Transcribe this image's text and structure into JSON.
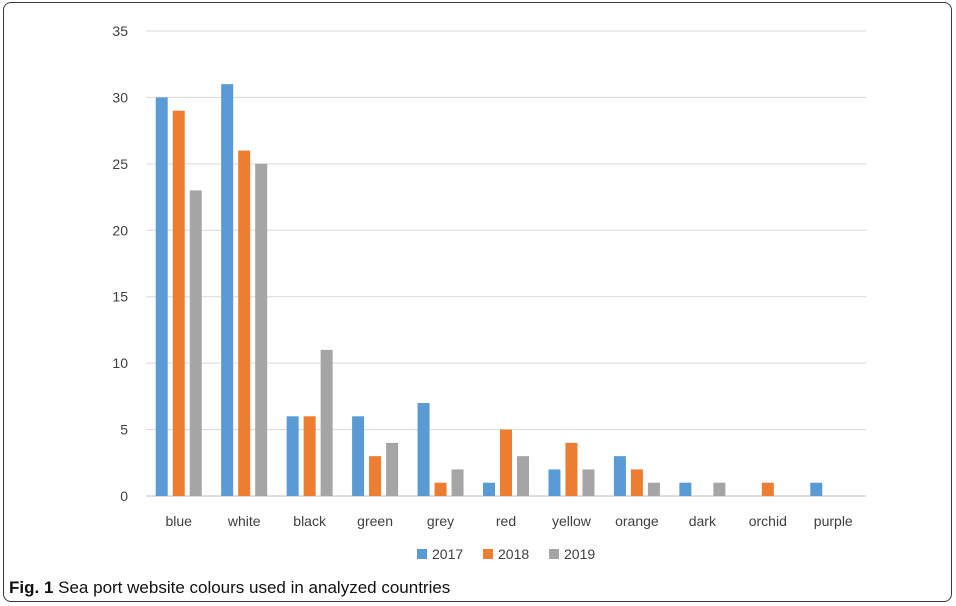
{
  "chart_data": {
    "type": "bar",
    "categories": [
      "blue",
      "white",
      "black",
      "green",
      "grey",
      "red",
      "yellow",
      "orange",
      "dark",
      "orchid",
      "purple"
    ],
    "series": [
      {
        "name": "2017",
        "color": "#5b9bd5",
        "values": [
          30,
          31,
          6,
          6,
          7,
          1,
          2,
          3,
          1,
          0,
          1
        ]
      },
      {
        "name": "2018",
        "color": "#ed7d31",
        "values": [
          29,
          26,
          6,
          3,
          1,
          5,
          4,
          2,
          0,
          1,
          0
        ]
      },
      {
        "name": "2019",
        "color": "#a5a5a5",
        "values": [
          23,
          25,
          11,
          4,
          2,
          3,
          2,
          1,
          1,
          0,
          0
        ]
      }
    ],
    "ylim": [
      0,
      35
    ],
    "yticks": [
      0,
      5,
      10,
      15,
      20,
      25,
      30,
      35
    ],
    "grid": true,
    "legend": "bottom"
  },
  "caption": {
    "label": "Fig. 1",
    "text": "Sea port website colours used in analyzed countries"
  }
}
